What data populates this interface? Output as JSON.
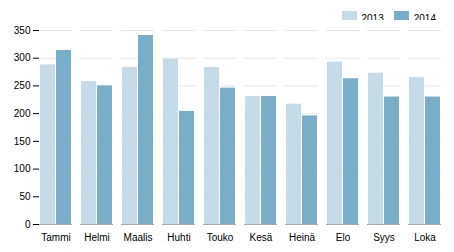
{
  "chart_data": {
    "type": "bar",
    "categories": [
      "Tammi",
      "Helmi",
      "Maalis",
      "Huhti",
      "Touko",
      "Kesä",
      "Heinä",
      "Elo",
      "Syys",
      "Loka"
    ],
    "series": [
      {
        "name": "2013",
        "color": "#c5dce8",
        "values": [
          288,
          258,
          283,
          298,
          283,
          231,
          217,
          293,
          273,
          265
        ]
      },
      {
        "name": "2014",
        "color": "#7aaec8",
        "values": [
          314,
          250,
          341,
          204,
          246,
          231,
          196,
          263,
          230,
          230
        ]
      }
    ],
    "ylim": [
      0,
      350
    ],
    "yticks": [
      0,
      50,
      100,
      150,
      200,
      250,
      300,
      350
    ],
    "grid": true,
    "legend": "upper right"
  }
}
